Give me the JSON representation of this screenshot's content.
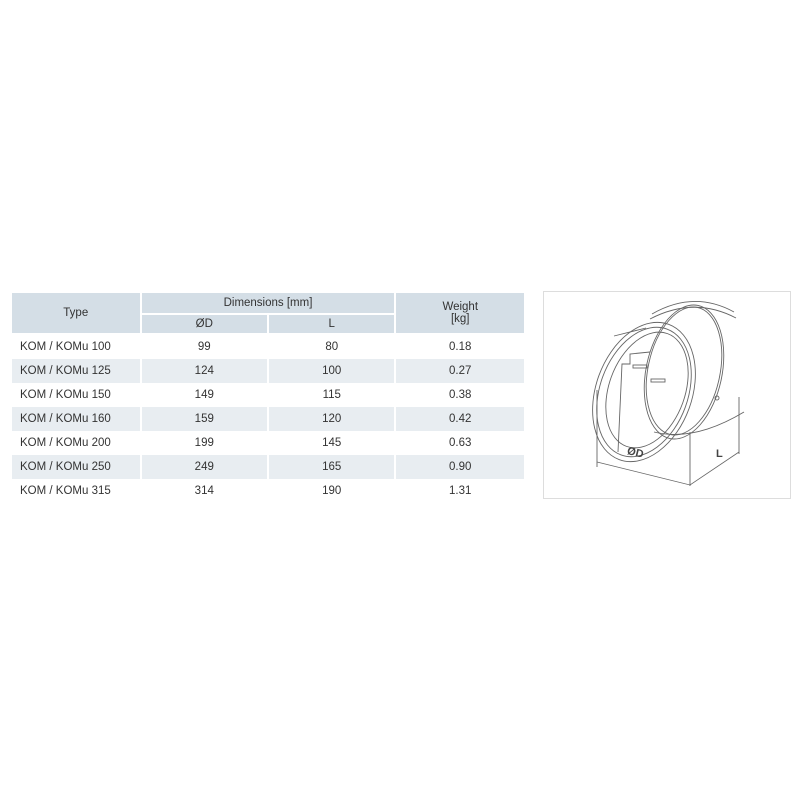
{
  "table": {
    "headers": {
      "type": "Type",
      "dimensions": "Dimensions [mm]",
      "diameter": "ØD",
      "length": "L",
      "weight": "Weight\n[kg]",
      "weight_line1": "Weight",
      "weight_line2": "[kg]"
    },
    "rows": [
      {
        "type": "KOM / KOMu 100",
        "d": "99",
        "l": "80",
        "w": "0.18"
      },
      {
        "type": "KOM / KOMu 125",
        "d": "124",
        "l": "100",
        "w": "0.27"
      },
      {
        "type": "KOM / KOMu 150",
        "d": "149",
        "l": "115",
        "w": "0.38"
      },
      {
        "type": "KOM / KOMu 160",
        "d": "159",
        "l": "120",
        "w": "0.42"
      },
      {
        "type": "KOM / KOMu 200",
        "d": "199",
        "l": "145",
        "w": "0.63"
      },
      {
        "type": "KOM / KOMu 250",
        "d": "249",
        "l": "165",
        "w": "0.90"
      },
      {
        "type": "KOM / KOMu 315",
        "d": "314",
        "l": "190",
        "w": "1.31"
      }
    ]
  },
  "drawing": {
    "label_d": "ØD",
    "label_l": "L"
  },
  "colors": {
    "header_bg": "#d4dee6",
    "alt_row_bg": "#e8edf1"
  }
}
